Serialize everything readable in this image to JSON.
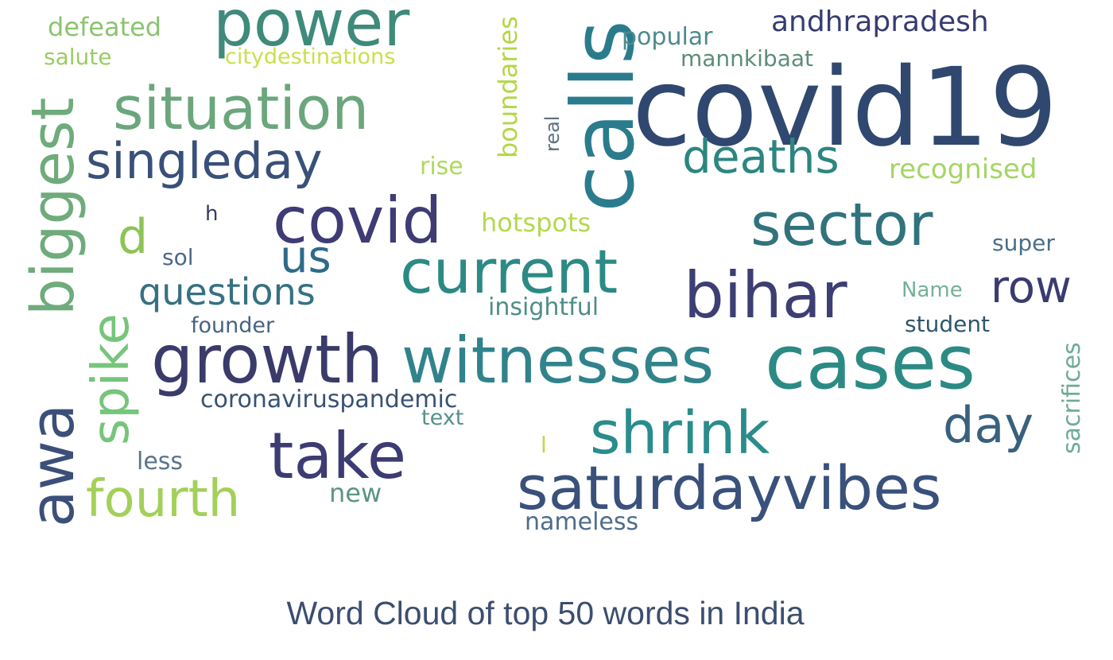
{
  "chart_data": {
    "type": "wordcloud",
    "title": "Word Cloud of top 50 words in India",
    "palette": "viridis",
    "words": [
      {
        "text": "covid19",
        "color": "#30486f"
      },
      {
        "text": "calls",
        "color": "#2a7c8d"
      },
      {
        "text": "power",
        "color": "#3e8a7b"
      },
      {
        "text": "situation",
        "color": "#6ba67c"
      },
      {
        "text": "singleday",
        "color": "#38507a"
      },
      {
        "text": "deaths",
        "color": "#2c8680"
      },
      {
        "text": "biggest",
        "color": "#6fab7b"
      },
      {
        "text": "covid",
        "color": "#3e3b75"
      },
      {
        "text": "sector",
        "color": "#30737c"
      },
      {
        "text": "current",
        "color": "#2c8a84"
      },
      {
        "text": "bihar",
        "color": "#3d3e73"
      },
      {
        "text": "cases",
        "color": "#2c8a84"
      },
      {
        "text": "witnesses",
        "color": "#31838b"
      },
      {
        "text": "growth",
        "color": "#3a3b6b"
      },
      {
        "text": "awa",
        "color": "#3b4f79"
      },
      {
        "text": "spike",
        "color": "#76c57b"
      },
      {
        "text": "take",
        "color": "#3c3b72"
      },
      {
        "text": "shrink",
        "color": "#2b8c8c"
      },
      {
        "text": "saturdayvibes",
        "color": "#39517b"
      },
      {
        "text": "fourth",
        "color": "#a3d05a"
      },
      {
        "text": "day",
        "color": "#38617e"
      },
      {
        "text": "d",
        "color": "#8ec456"
      },
      {
        "text": "us",
        "color": "#2e6a8a"
      },
      {
        "text": "questions",
        "color": "#367182"
      },
      {
        "text": "row",
        "color": "#3b3b72"
      },
      {
        "text": "andhrapradesh",
        "color": "#363c70"
      },
      {
        "text": "defeated",
        "color": "#8cc46f"
      },
      {
        "text": "salute",
        "color": "#9bcc62"
      },
      {
        "text": "citydestinations",
        "color": "#c9e04d"
      },
      {
        "text": "popular",
        "color": "#4e8a8d"
      },
      {
        "text": "mannkibaat",
        "color": "#5c8d78"
      },
      {
        "text": "boundaries",
        "color": "#b4d645"
      },
      {
        "text": "real",
        "color": "#5c6f80"
      },
      {
        "text": "rise",
        "color": "#aed95c"
      },
      {
        "text": "recognised",
        "color": "#a5d565"
      },
      {
        "text": "hotspots",
        "color": "#b3d94c"
      },
      {
        "text": "h",
        "color": "#363a63"
      },
      {
        "text": "sol",
        "color": "#4d6885"
      },
      {
        "text": "super",
        "color": "#4a6e86"
      },
      {
        "text": "Name",
        "color": "#73b196"
      },
      {
        "text": "insightful",
        "color": "#4e8d87"
      },
      {
        "text": "founder",
        "color": "#466382"
      },
      {
        "text": "student",
        "color": "#2f5669"
      },
      {
        "text": "coronaviruspandemic",
        "color": "#395273"
      },
      {
        "text": "text",
        "color": "#56918b"
      },
      {
        "text": "sacrifices",
        "color": "#6eab94"
      },
      {
        "text": "less",
        "color": "#58758c"
      },
      {
        "text": "l",
        "color": "#b9db45"
      },
      {
        "text": "new",
        "color": "#5c9484"
      },
      {
        "text": "nameless",
        "color": "#4f6c8c"
      }
    ]
  }
}
